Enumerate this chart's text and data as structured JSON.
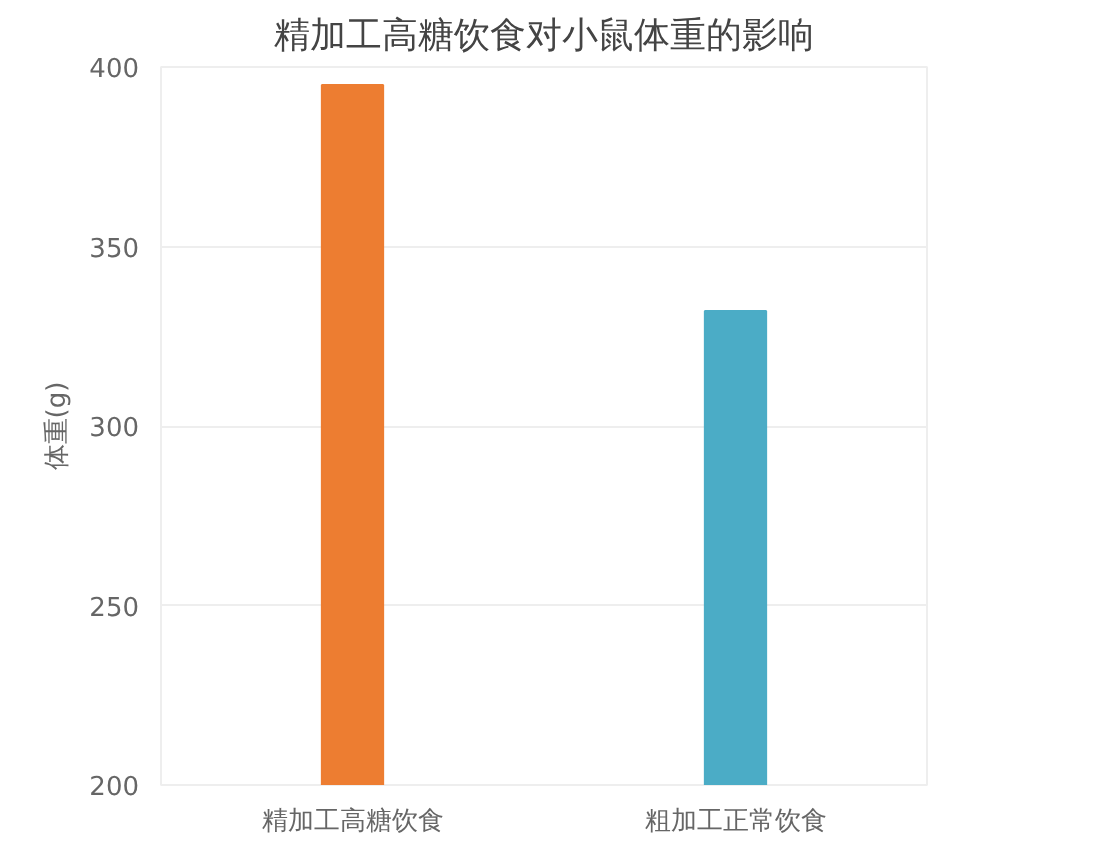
{
  "chart_data": {
    "type": "bar",
    "title": "精加工高糖饮食对小鼠体重的影响",
    "ylabel": "体重(g)",
    "categories": [
      "精加工高糖饮食",
      "粗加工正常饮食"
    ],
    "values": [
      395,
      332
    ],
    "colors": [
      "#ed7d31",
      "#4bacc6"
    ],
    "ylim": [
      200,
      400
    ],
    "yticks": [
      200,
      250,
      300,
      350,
      400
    ],
    "grid": "y"
  }
}
